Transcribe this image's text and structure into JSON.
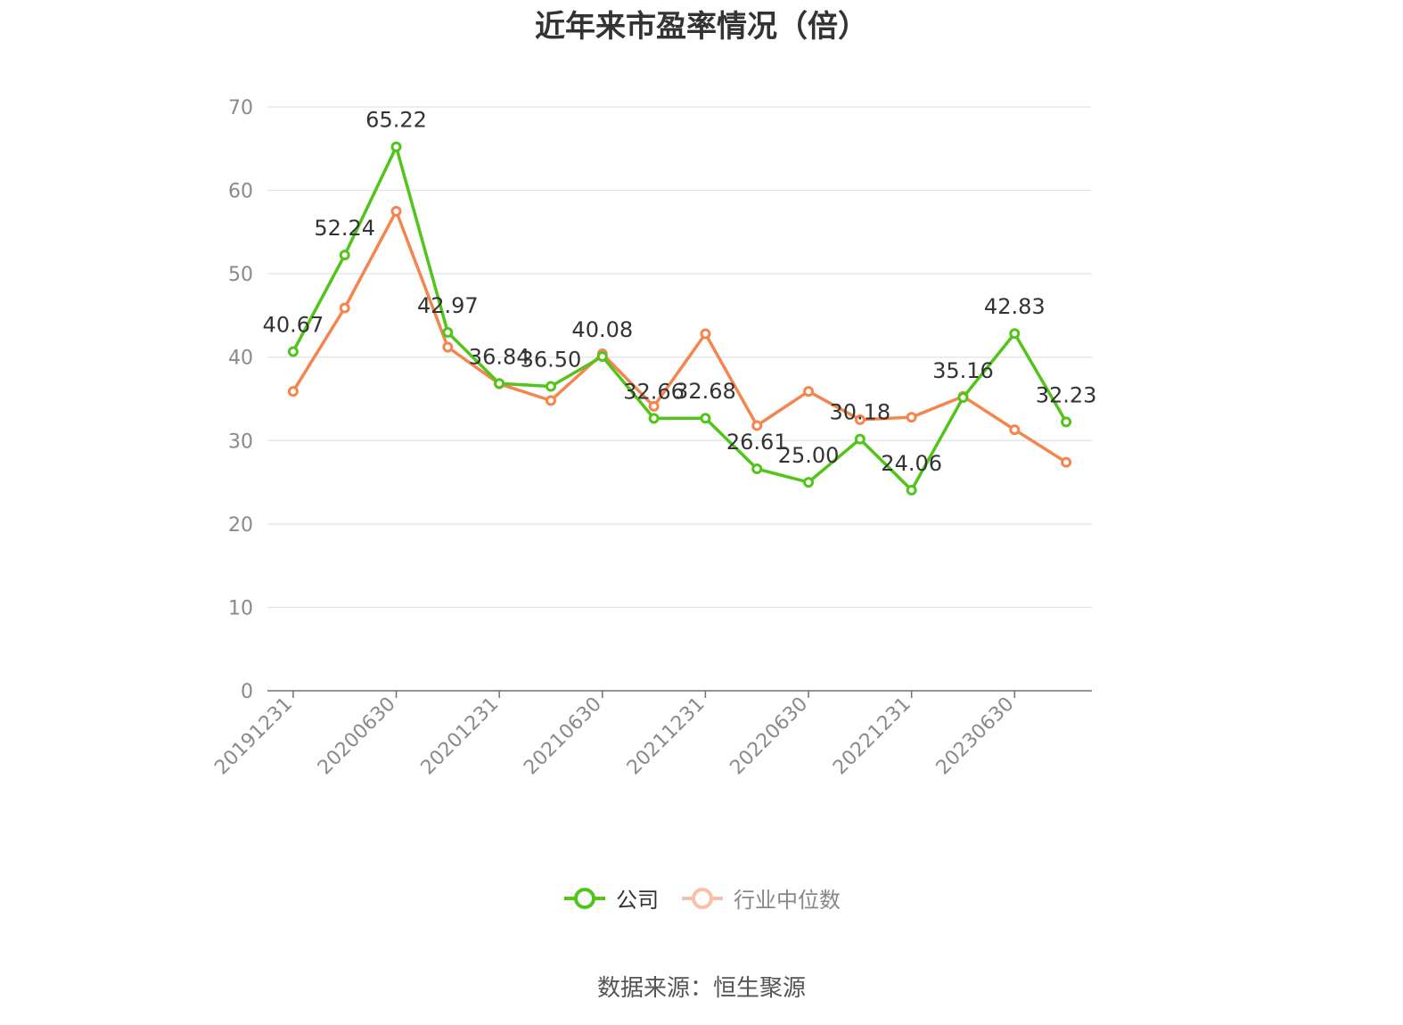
{
  "chart_data": {
    "type": "line",
    "title": "近年来市盈率情况（倍）",
    "xlabel": "",
    "ylabel": "",
    "ylim": [
      0,
      70
    ],
    "yticks": [
      0,
      10,
      20,
      30,
      40,
      50,
      60,
      70
    ],
    "grid": true,
    "legend_position": "bottom",
    "x": [
      "20191231",
      "20200331",
      "20200630",
      "20200930",
      "20201231",
      "20210331",
      "20210630",
      "20210930",
      "20211231",
      "20220331",
      "20220630",
      "20220930",
      "20221231",
      "20230331",
      "20230630",
      "20230930"
    ],
    "x_tick_labels": [
      "20191231",
      "20200630",
      "20201231",
      "20210630",
      "20211231",
      "20220630",
      "20221231",
      "20230630"
    ],
    "series": [
      {
        "name": "公司",
        "color": "#52c41a",
        "values": [
          40.67,
          52.24,
          65.22,
          42.97,
          36.84,
          36.5,
          40.08,
          32.66,
          32.68,
          26.61,
          25.0,
          30.18,
          24.06,
          35.16,
          42.83,
          32.23
        ],
        "data_labels": [
          "40.67",
          "52.24",
          "65.22",
          "42.97",
          "36.84",
          "36.50",
          "40.08",
          "32.66",
          "32.68",
          "26.61",
          "25.00",
          "30.18",
          "24.06",
          "35.16",
          "42.83",
          "32.23"
        ]
      },
      {
        "name": "行业中位数",
        "color": "#f5854e",
        "values": [
          35.9,
          45.9,
          57.5,
          41.2,
          36.8,
          34.8,
          40.4,
          34.1,
          42.8,
          31.8,
          35.9,
          32.5,
          32.8,
          35.3,
          31.3,
          27.4
        ]
      }
    ]
  },
  "legend": {
    "company_label": "公司",
    "industry_label": "行业中位数"
  },
  "source": "数据来源：恒生聚源"
}
